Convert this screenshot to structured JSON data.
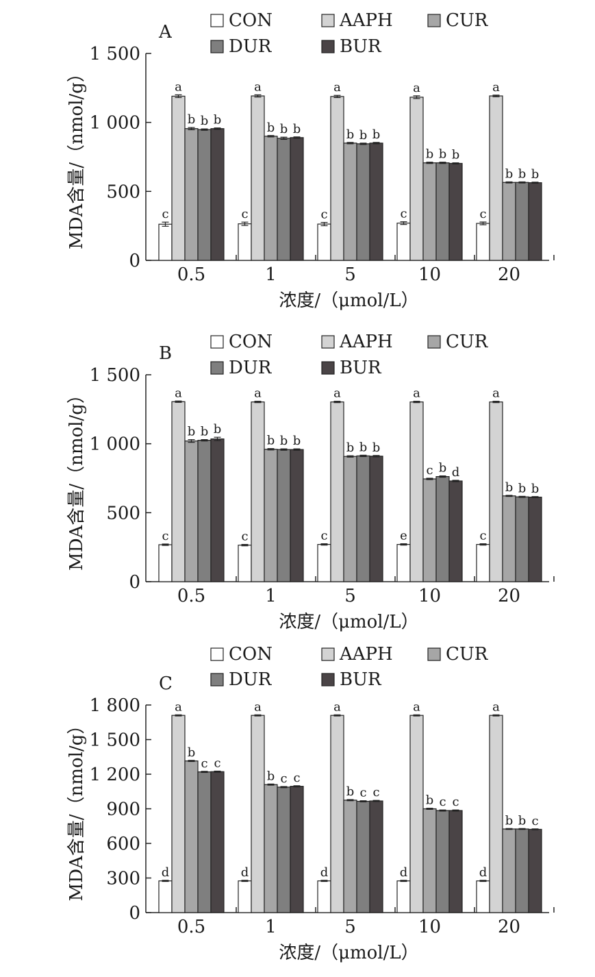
{
  "chart_data": [
    {
      "type": "bar",
      "panel": "A",
      "categories": [
        "0.5",
        "1",
        "5",
        "10",
        "20"
      ],
      "xlabel": "浓度/（μmol/L）",
      "ylabel": "MDA含量/（nmol/g）",
      "ylim": [
        0,
        1500
      ],
      "yticks": [
        0,
        500,
        1000,
        1500
      ],
      "ytick_labels": [
        "0",
        "500",
        "1 000",
        "1 500"
      ],
      "legend_position": "top",
      "series": [
        {
          "name": "CON",
          "color": "#ffffff",
          "values": [
            262,
            265,
            263,
            270,
            268
          ],
          "errors": [
            15,
            12,
            12,
            10,
            10
          ],
          "letters": [
            "c",
            "c",
            "c",
            "c",
            "c"
          ]
        },
        {
          "name": "AAPH",
          "color": "#d3d3d3",
          "values": [
            1190,
            1192,
            1188,
            1183,
            1192
          ],
          "errors": [
            10,
            8,
            8,
            10,
            6
          ],
          "letters": [
            "a",
            "a",
            "a",
            "a",
            "a"
          ]
        },
        {
          "name": "CUR",
          "color": "#a6a6a6",
          "values": [
            955,
            900,
            850,
            707,
            565
          ],
          "errors": [
            8,
            5,
            5,
            5,
            4
          ],
          "letters": [
            "b",
            "b",
            "b",
            "b",
            "b"
          ]
        },
        {
          "name": "DUR",
          "color": "#7f7f7f",
          "values": [
            948,
            885,
            845,
            707,
            565
          ],
          "errors": [
            5,
            8,
            5,
            5,
            4
          ],
          "letters": [
            "b",
            "b",
            "b",
            "b",
            "b"
          ]
        },
        {
          "name": "BUR",
          "color": "#4a4446",
          "values": [
            955,
            890,
            850,
            703,
            563
          ],
          "errors": [
            5,
            5,
            5,
            4,
            4
          ],
          "letters": [
            "b",
            "b",
            "b",
            "b",
            "b"
          ]
        }
      ]
    },
    {
      "type": "bar",
      "panel": "B",
      "categories": [
        "0.5",
        "1",
        "5",
        "10",
        "20"
      ],
      "xlabel": "浓度/（μmol/L）",
      "ylabel": "MDA含量/（nmol/g）",
      "ylim": [
        0,
        1500
      ],
      "yticks": [
        0,
        500,
        1000,
        1500
      ],
      "ytick_labels": [
        "0",
        "500",
        "1 000",
        "1 500"
      ],
      "legend_position": "top",
      "series": [
        {
          "name": "CON",
          "color": "#ffffff",
          "values": [
            268,
            265,
            270,
            270,
            270
          ],
          "errors": [
            5,
            5,
            5,
            5,
            5
          ],
          "letters": [
            "c",
            "c",
            "c",
            "e",
            "c"
          ]
        },
        {
          "name": "AAPH",
          "color": "#d3d3d3",
          "values": [
            1305,
            1303,
            1303,
            1303,
            1303
          ],
          "errors": [
            5,
            5,
            5,
            5,
            5
          ],
          "letters": [
            "a",
            "a",
            "a",
            "a",
            "a"
          ]
        },
        {
          "name": "CUR",
          "color": "#a6a6a6",
          "values": [
            1020,
            960,
            908,
            745,
            622
          ],
          "errors": [
            10,
            5,
            5,
            5,
            4
          ],
          "letters": [
            "b",
            "b",
            "b",
            "c",
            "b"
          ]
        },
        {
          "name": "DUR",
          "color": "#7f7f7f",
          "values": [
            1025,
            958,
            912,
            762,
            615
          ],
          "errors": [
            5,
            5,
            5,
            5,
            4
          ],
          "letters": [
            "b",
            "b",
            "b",
            "b",
            "b"
          ]
        },
        {
          "name": "BUR",
          "color": "#4a4446",
          "values": [
            1035,
            958,
            910,
            730,
            613
          ],
          "errors": [
            12,
            5,
            5,
            5,
            4
          ],
          "letters": [
            "b",
            "b",
            "b",
            "d",
            "b"
          ]
        }
      ]
    },
    {
      "type": "bar",
      "panel": "C",
      "categories": [
        "0.5",
        "1",
        "5",
        "10",
        "20"
      ],
      "xlabel": "浓度/（μmol/L）",
      "ylabel": "MDA含量/（nmol/g）",
      "ylim": [
        0,
        1800
      ],
      "yticks": [
        0,
        300,
        600,
        900,
        1200,
        1500,
        1800
      ],
      "ytick_labels": [
        "0",
        "300",
        "600",
        "900",
        "1 200",
        "1 500",
        "1 800"
      ],
      "legend_position": "top",
      "series": [
        {
          "name": "CON",
          "color": "#ffffff",
          "values": [
            275,
            275,
            275,
            275,
            275
          ],
          "errors": [
            5,
            5,
            5,
            5,
            5
          ],
          "letters": [
            "d",
            "d",
            "d",
            "d",
            "d"
          ]
        },
        {
          "name": "AAPH",
          "color": "#d3d3d3",
          "values": [
            1710,
            1710,
            1710,
            1710,
            1710
          ],
          "errors": [
            5,
            5,
            5,
            5,
            5
          ],
          "letters": [
            "a",
            "a",
            "a",
            "a",
            "a"
          ]
        },
        {
          "name": "CUR",
          "color": "#a6a6a6",
          "values": [
            1315,
            1110,
            975,
            900,
            725
          ],
          "errors": [
            5,
            5,
            5,
            5,
            4
          ],
          "letters": [
            "b",
            "b",
            "b",
            "b",
            "b"
          ]
        },
        {
          "name": "DUR",
          "color": "#7f7f7f",
          "values": [
            1220,
            1088,
            965,
            885,
            725
          ],
          "errors": [
            5,
            5,
            5,
            5,
            4
          ],
          "letters": [
            "c",
            "c",
            "c",
            "c",
            "b"
          ]
        },
        {
          "name": "BUR",
          "color": "#4a4446",
          "values": [
            1222,
            1095,
            968,
            885,
            722
          ],
          "errors": [
            5,
            5,
            5,
            5,
            4
          ],
          "letters": [
            "c",
            "c",
            "c",
            "c",
            "c"
          ]
        }
      ]
    }
  ]
}
